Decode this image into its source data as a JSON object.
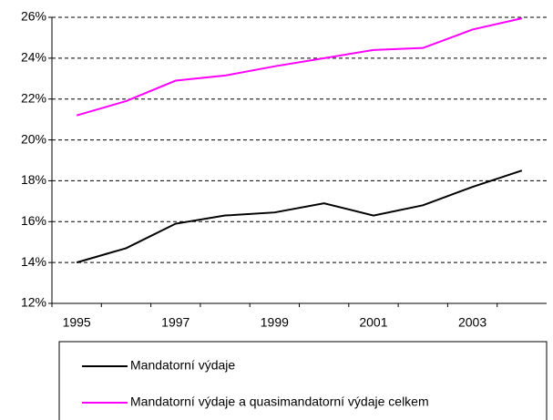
{
  "chart_data": {
    "type": "line",
    "categories": [
      "1995",
      null,
      "1997",
      null,
      "1999",
      null,
      "2001",
      null,
      "2003",
      null
    ],
    "series": [
      {
        "name": "Mandatorní výdaje",
        "color": "#000000",
        "values": [
          14.0,
          14.7,
          15.9,
          16.3,
          16.45,
          16.9,
          16.3,
          16.8,
          17.7,
          18.5
        ]
      },
      {
        "name": "Mandatorní výdaje a quasimandatorní výdaje celkem",
        "color": "#ff00ff",
        "values": [
          21.2,
          21.9,
          22.9,
          23.15,
          23.6,
          24.0,
          24.4,
          24.5,
          25.4,
          25.95
        ]
      }
    ],
    "ylim": [
      12,
      26
    ],
    "yticks": [
      {
        "value": 12,
        "label": "12%"
      },
      {
        "value": 14,
        "label": "14%"
      },
      {
        "value": 16,
        "label": "16%"
      },
      {
        "value": 18,
        "label": "18%"
      },
      {
        "value": 20,
        "label": "20%"
      },
      {
        "value": 22,
        "label": "22%"
      },
      {
        "value": 24,
        "label": "24%"
      },
      {
        "value": 26,
        "label": "26%"
      }
    ],
    "grid": true
  }
}
